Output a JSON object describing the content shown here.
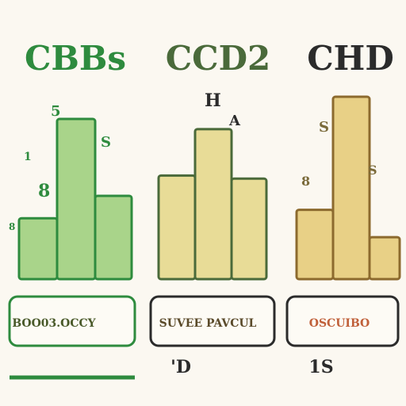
{
  "colors": {
    "background": "#fbf8f1",
    "green_dark": "#2e8b3e",
    "green_fill": "#a9d48a",
    "olive_dark": "#4a6a3a",
    "olive_fill": "#e8dc97",
    "gold_dark": "#8c6a2e",
    "gold_fill": "#e8d086",
    "ink": "#2b2b2b",
    "accent_red": "#d0705a"
  },
  "chart_data": [
    {
      "type": "bar",
      "title": "CBBs",
      "values": [
        0.38,
        1.0,
        0.52
      ],
      "ylim": [
        0,
        1
      ],
      "tick_labels": [
        "5",
        "8",
        "S",
        "1",
        "8"
      ],
      "box_label": "BOO03.OCCY",
      "footer_label": "",
      "color_key": "green"
    },
    {
      "type": "bar",
      "title": "CCD2",
      "values": [
        0.67,
        0.97,
        0.65
      ],
      "ylim": [
        0,
        1
      ],
      "tick_labels": [
        "H",
        "A"
      ],
      "box_label": "SUVEE PAVCUL",
      "footer_label": "'D",
      "color_key": "olive"
    },
    {
      "type": "bar",
      "title": "CHD",
      "values": [
        0.38,
        1.0,
        0.23
      ],
      "ylim": [
        0,
        1
      ],
      "tick_labels": [
        "S",
        "S",
        "8"
      ],
      "box_label": "OSCUIBO",
      "footer_label": "1S",
      "color_key": "gold"
    }
  ]
}
